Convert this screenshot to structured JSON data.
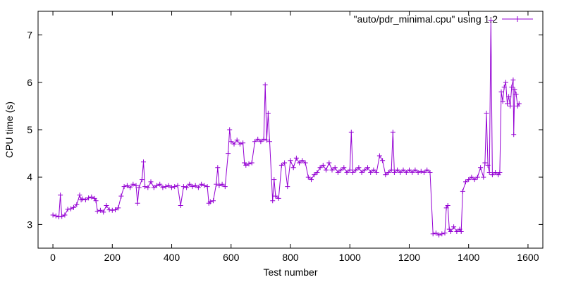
{
  "chart_data": {
    "type": "line",
    "title": "",
    "xlabel": "Test number",
    "ylabel": "CPU time (s)",
    "xlim": [
      -50,
      1650
    ],
    "ylim": [
      2.5,
      7.5
    ],
    "x_ticks": [
      "0",
      "200",
      "400",
      "600",
      "800",
      "1000",
      "1200",
      "1400",
      "1600"
    ],
    "y_ticks": [
      "3",
      "4",
      "5",
      "6",
      "7"
    ],
    "grid": false,
    "legend_position": "top-right",
    "series": [
      {
        "name": "\"auto/pdr_minimal.cpu\" using 1:2",
        "color": "#9400d3",
        "marker": "plus",
        "points": [
          [
            0,
            3.2
          ],
          [
            10,
            3.18
          ],
          [
            20,
            3.16
          ],
          [
            25,
            3.62
          ],
          [
            30,
            3.17
          ],
          [
            40,
            3.2
          ],
          [
            50,
            3.32
          ],
          [
            60,
            3.33
          ],
          [
            70,
            3.36
          ],
          [
            80,
            3.42
          ],
          [
            90,
            3.62
          ],
          [
            95,
            3.52
          ],
          [
            100,
            3.54
          ],
          [
            110,
            3.52
          ],
          [
            120,
            3.56
          ],
          [
            130,
            3.58
          ],
          [
            140,
            3.55
          ],
          [
            145,
            3.5
          ],
          [
            150,
            3.28
          ],
          [
            160,
            3.3
          ],
          [
            170,
            3.26
          ],
          [
            180,
            3.4
          ],
          [
            190,
            3.31
          ],
          [
            200,
            3.3
          ],
          [
            210,
            3.31
          ],
          [
            220,
            3.35
          ],
          [
            230,
            3.6
          ],
          [
            240,
            3.8
          ],
          [
            250,
            3.82
          ],
          [
            260,
            3.78
          ],
          [
            270,
            3.85
          ],
          [
            280,
            3.82
          ],
          [
            285,
            3.45
          ],
          [
            290,
            3.78
          ],
          [
            300,
            3.95
          ],
          [
            305,
            4.32
          ],
          [
            310,
            3.8
          ],
          [
            320,
            3.78
          ],
          [
            330,
            3.9
          ],
          [
            340,
            3.78
          ],
          [
            350,
            3.82
          ],
          [
            360,
            3.85
          ],
          [
            370,
            3.78
          ],
          [
            380,
            3.8
          ],
          [
            390,
            3.82
          ],
          [
            400,
            3.78
          ],
          [
            410,
            3.8
          ],
          [
            420,
            3.82
          ],
          [
            430,
            3.4
          ],
          [
            440,
            3.8
          ],
          [
            450,
            3.78
          ],
          [
            460,
            3.85
          ],
          [
            470,
            3.8
          ],
          [
            480,
            3.82
          ],
          [
            490,
            3.78
          ],
          [
            500,
            3.85
          ],
          [
            510,
            3.82
          ],
          [
            520,
            3.8
          ],
          [
            525,
            3.45
          ],
          [
            530,
            3.48
          ],
          [
            540,
            3.5
          ],
          [
            550,
            3.85
          ],
          [
            555,
            4.2
          ],
          [
            560,
            3.82
          ],
          [
            570,
            3.85
          ],
          [
            580,
            3.8
          ],
          [
            590,
            4.5
          ],
          [
            595,
            5.0
          ],
          [
            600,
            4.75
          ],
          [
            610,
            4.7
          ],
          [
            620,
            4.78
          ],
          [
            630,
            4.7
          ],
          [
            640,
            4.72
          ],
          [
            645,
            4.3
          ],
          [
            650,
            4.25
          ],
          [
            660,
            4.28
          ],
          [
            670,
            4.3
          ],
          [
            680,
            4.75
          ],
          [
            690,
            4.8
          ],
          [
            700,
            4.75
          ],
          [
            710,
            4.8
          ],
          [
            715,
            5.95
          ],
          [
            720,
            4.78
          ],
          [
            725,
            5.35
          ],
          [
            730,
            4.75
          ],
          [
            740,
            3.5
          ],
          [
            745,
            3.95
          ],
          [
            750,
            3.6
          ],
          [
            760,
            3.55
          ],
          [
            770,
            4.25
          ],
          [
            780,
            4.3
          ],
          [
            790,
            3.8
          ],
          [
            800,
            4.35
          ],
          [
            810,
            4.2
          ],
          [
            820,
            4.4
          ],
          [
            830,
            4.3
          ],
          [
            840,
            4.35
          ],
          [
            850,
            4.3
          ],
          [
            860,
            4.0
          ],
          [
            870,
            3.95
          ],
          [
            880,
            4.05
          ],
          [
            890,
            4.1
          ],
          [
            900,
            4.2
          ],
          [
            910,
            4.25
          ],
          [
            920,
            4.15
          ],
          [
            930,
            4.3
          ],
          [
            940,
            4.15
          ],
          [
            950,
            4.2
          ],
          [
            960,
            4.1
          ],
          [
            970,
            4.15
          ],
          [
            980,
            4.2
          ],
          [
            990,
            4.1
          ],
          [
            1000,
            4.15
          ],
          [
            1005,
            4.95
          ],
          [
            1010,
            4.1
          ],
          [
            1020,
            4.15
          ],
          [
            1030,
            4.2
          ],
          [
            1040,
            4.1
          ],
          [
            1050,
            4.15
          ],
          [
            1060,
            4.2
          ],
          [
            1070,
            4.1
          ],
          [
            1080,
            4.15
          ],
          [
            1090,
            4.1
          ],
          [
            1100,
            4.45
          ],
          [
            1110,
            4.35
          ],
          [
            1120,
            4.05
          ],
          [
            1130,
            4.1
          ],
          [
            1140,
            4.15
          ],
          [
            1145,
            4.95
          ],
          [
            1150,
            4.1
          ],
          [
            1160,
            4.15
          ],
          [
            1170,
            4.1
          ],
          [
            1180,
            4.15
          ],
          [
            1190,
            4.1
          ],
          [
            1200,
            4.15
          ],
          [
            1210,
            4.1
          ],
          [
            1220,
            4.15
          ],
          [
            1230,
            4.1
          ],
          [
            1240,
            4.12
          ],
          [
            1250,
            4.1
          ],
          [
            1260,
            4.15
          ],
          [
            1270,
            4.1
          ],
          [
            1280,
            2.8
          ],
          [
            1290,
            2.82
          ],
          [
            1300,
            2.78
          ],
          [
            1310,
            2.8
          ],
          [
            1320,
            2.82
          ],
          [
            1325,
            3.35
          ],
          [
            1330,
            3.4
          ],
          [
            1335,
            2.9
          ],
          [
            1340,
            2.85
          ],
          [
            1350,
            2.95
          ],
          [
            1360,
            2.85
          ],
          [
            1370,
            2.9
          ],
          [
            1375,
            2.85
          ],
          [
            1380,
            3.7
          ],
          [
            1390,
            3.9
          ],
          [
            1400,
            3.95
          ],
          [
            1410,
            4.0
          ],
          [
            1420,
            3.95
          ],
          [
            1430,
            4.0
          ],
          [
            1440,
            4.2
          ],
          [
            1450,
            4.0
          ],
          [
            1455,
            4.3
          ],
          [
            1460,
            5.35
          ],
          [
            1465,
            4.25
          ],
          [
            1470,
            4.1
          ],
          [
            1475,
            7.3
          ],
          [
            1480,
            4.05
          ],
          [
            1490,
            4.1
          ],
          [
            1500,
            4.05
          ],
          [
            1505,
            4.1
          ],
          [
            1510,
            5.8
          ],
          [
            1515,
            5.6
          ],
          [
            1520,
            5.9
          ],
          [
            1525,
            6.0
          ],
          [
            1530,
            5.55
          ],
          [
            1535,
            5.7
          ],
          [
            1540,
            5.5
          ],
          [
            1545,
            5.9
          ],
          [
            1550,
            6.05
          ],
          [
            1552,
            4.9
          ],
          [
            1555,
            5.85
          ],
          [
            1560,
            5.75
          ],
          [
            1565,
            5.5
          ],
          [
            1570,
            5.55
          ]
        ]
      }
    ]
  }
}
